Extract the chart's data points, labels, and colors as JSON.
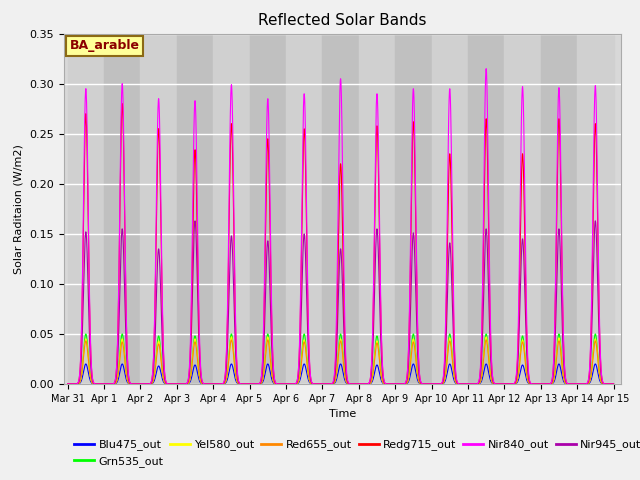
{
  "title": "Reflected Solar Bands",
  "ylabel": "Solar Raditaion (W/m2)",
  "xlabel": "Time",
  "annotation": "BA_arable",
  "ylim": [
    0,
    0.35
  ],
  "tick_labels": [
    "Mar 31",
    "Apr 1",
    "Apr 2",
    "Apr 3",
    "Apr 4",
    "Apr 5",
    "Apr 6",
    "Apr 7",
    "Apr 8",
    "Apr 9",
    "Apr 10",
    "Apr 11",
    "Apr 12",
    "Apr 13",
    "Apr 14",
    "Apr 15"
  ],
  "bands": {
    "Blu475_out": {
      "color": "#0000FF"
    },
    "Grn535_out": {
      "color": "#00FF00"
    },
    "Yel580_out": {
      "color": "#FFFF00"
    },
    "Red655_out": {
      "color": "#FF8800"
    },
    "Redg715_out": {
      "color": "#FF0000"
    },
    "Nir840_out": {
      "color": "#FF00FF"
    },
    "Nir945_out": {
      "color": "#AA00AA"
    }
  },
  "n_days": 15,
  "pts_per_day": 288,
  "daily_peaks": {
    "Blu475_out": [
      0.02,
      0.02,
      0.018,
      0.019,
      0.02,
      0.02,
      0.02,
      0.02,
      0.019,
      0.02,
      0.02,
      0.02,
      0.019,
      0.02,
      0.02
    ],
    "Grn535_out": [
      0.05,
      0.05,
      0.048,
      0.048,
      0.05,
      0.05,
      0.05,
      0.05,
      0.048,
      0.05,
      0.05,
      0.05,
      0.048,
      0.05,
      0.05
    ],
    "Yel580_out": [
      0.045,
      0.045,
      0.043,
      0.045,
      0.047,
      0.047,
      0.044,
      0.045,
      0.043,
      0.045,
      0.046,
      0.047,
      0.044,
      0.046,
      0.045
    ],
    "Red655_out": [
      0.043,
      0.042,
      0.04,
      0.042,
      0.044,
      0.044,
      0.042,
      0.043,
      0.041,
      0.042,
      0.043,
      0.044,
      0.042,
      0.043,
      0.043
    ],
    "Redg715_out": [
      0.27,
      0.28,
      0.255,
      0.234,
      0.26,
      0.245,
      0.255,
      0.22,
      0.258,
      0.262,
      0.23,
      0.265,
      0.23,
      0.265,
      0.26
    ],
    "Nir840_out": [
      0.295,
      0.3,
      0.285,
      0.283,
      0.299,
      0.285,
      0.29,
      0.305,
      0.29,
      0.295,
      0.295,
      0.315,
      0.297,
      0.296,
      0.298
    ],
    "Nir945_out": [
      0.152,
      0.155,
      0.135,
      0.163,
      0.148,
      0.143,
      0.15,
      0.135,
      0.155,
      0.151,
      0.141,
      0.155,
      0.145,
      0.155,
      0.163
    ]
  },
  "stripe_colors": [
    "#d8d8d8",
    "#c8c8c8"
  ],
  "fig_facecolor": "#f0f0f0",
  "ax_facecolor": "#d8d8d8"
}
